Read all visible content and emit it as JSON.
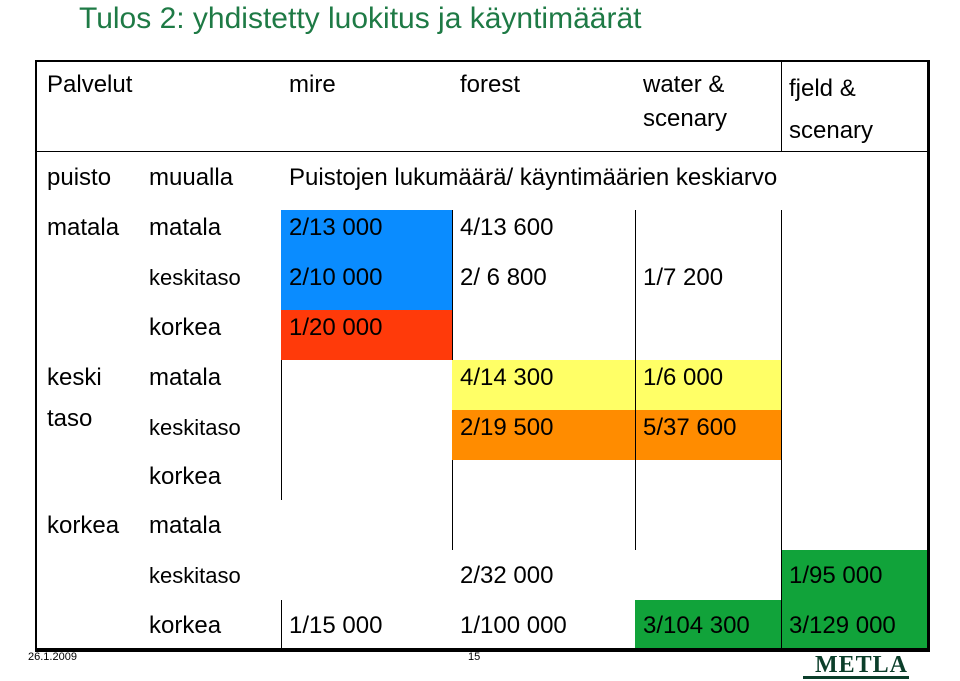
{
  "title": "Tulos 2:  yhdistetty luokitus ja käyntimäärät",
  "colors": {
    "title": "#1e7a45",
    "blue": "#0a8cff",
    "red": "#ff3a0a",
    "yellow": "#ffff66",
    "orange": "#ff8c00",
    "green": "#11a33a"
  },
  "header": {
    "palvelut": "Palvelut",
    "mire": "mire",
    "forest": "forest",
    "water_l1": "water &",
    "water_l2": "scenary",
    "fjeld_l1": "fjeld &",
    "fjeld_l2": "scenary",
    "puisto": "puisto",
    "muualla": "muualla",
    "subtitle": "Puistojen lukumäärä/ käyntimäärien keskiarvo"
  },
  "groups": {
    "matala": "matala",
    "keski_l1": "keski",
    "keski_l2": "taso",
    "korkea": "korkea"
  },
  "levels": {
    "matala": "matala",
    "keskitaso": "keskitaso",
    "korkea": "korkea"
  },
  "cells": {
    "r1_mire": "2/13 000",
    "r1_forest": "4/13 600",
    "r2_mire": "2/10 000",
    "r2_forest": "2/ 6 800",
    "r2_water": "1/7 200",
    "r3_mire": "1/20 000",
    "r4_forest": "4/14 300",
    "r4_water": "1/6 000",
    "r5_forest": "2/19 500",
    "r5_water": "5/37 600",
    "r8_forest": "2/32 000",
    "r8_fjeld": "1/95 000",
    "r9_mire": "1/15 000",
    "r9_forest": "1/100 000",
    "r9_water": "3/104 300",
    "r9_fjeld": "3/129 000"
  },
  "footer": {
    "date": "26.1.2009",
    "page": "15",
    "logo": "METLA"
  }
}
